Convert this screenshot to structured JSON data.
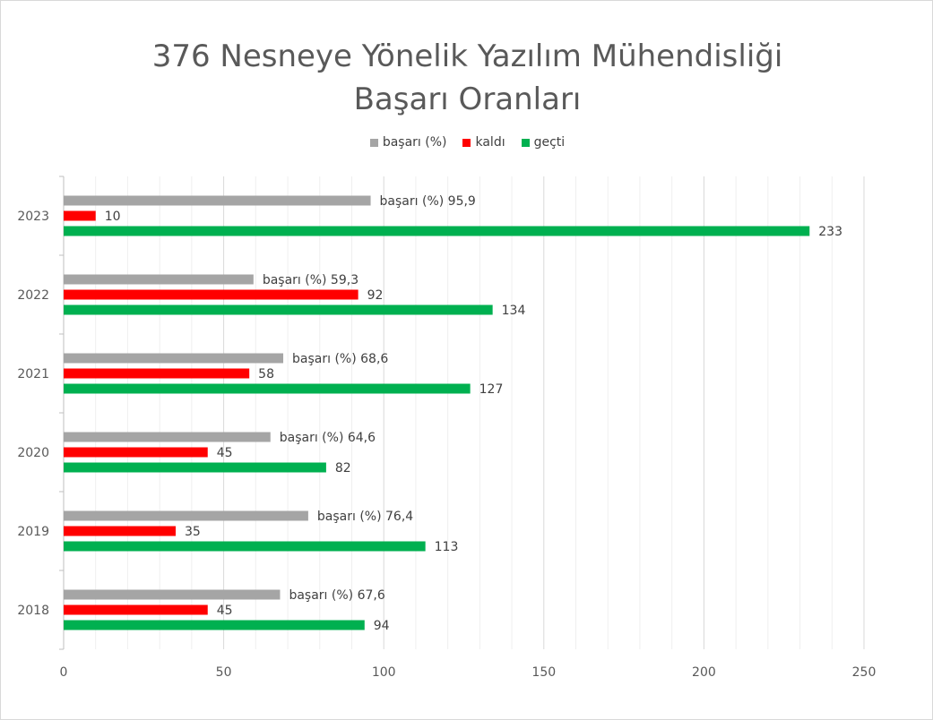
{
  "title_line1": "376 Nesneye Yönelik Yazılım Mühendisliği",
  "title_line2": "Başarı Oranları",
  "legend": [
    {
      "label": "başarı (%)",
      "color": "#a5a5a5"
    },
    {
      "label": "kaldı",
      "color": "#ff0000"
    },
    {
      "label": "geçti",
      "color": "#00b050"
    }
  ],
  "chart_data": {
    "type": "bar",
    "orientation": "horizontal",
    "categories": [
      "2018",
      "2019",
      "2020",
      "2021",
      "2022",
      "2023"
    ],
    "series": [
      {
        "name": "başarı (%)",
        "color": "#a5a5a5",
        "values": [
          67.6,
          76.4,
          64.6,
          68.6,
          59.3,
          95.9
        ],
        "labels": [
          "başarı (%) 67,6",
          "başarı (%) 76,4",
          "başarı (%) 64,6",
          "başarı (%) 68,6",
          "başarı (%) 59,3",
          "başarı (%) 95,9"
        ]
      },
      {
        "name": "kaldı",
        "color": "#ff0000",
        "values": [
          45,
          35,
          45,
          58,
          92,
          10
        ],
        "labels": [
          "45",
          "35",
          "45",
          "58",
          "92",
          "10"
        ]
      },
      {
        "name": "geçti",
        "color": "#00b050",
        "values": [
          94,
          113,
          82,
          127,
          134,
          233
        ],
        "labels": [
          "94",
          "113",
          "82",
          "127",
          "134",
          "233"
        ]
      }
    ],
    "xlim": [
      0,
      250
    ],
    "xticks": [
      "0",
      "50",
      "100",
      "150",
      "200",
      "250"
    ],
    "grid": true,
    "legend_position": "top"
  }
}
